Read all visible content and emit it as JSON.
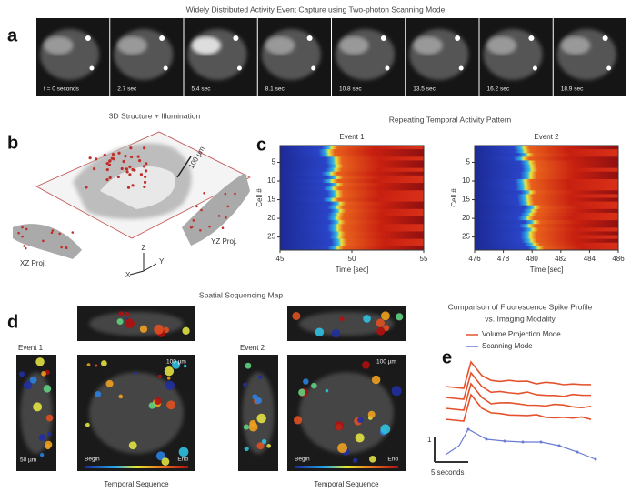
{
  "panel_a": {
    "label": "a",
    "title": "Widely Distributed Activity Event Capture using Two-photon Scanning Mode",
    "frames": [
      "t = 0 seconds",
      "2.7 sec",
      "5.4 sec",
      "8.1 sec",
      "10.8 sec",
      "13.5 sec",
      "16.2 sec",
      "18.9 sec"
    ]
  },
  "panel_b": {
    "label": "b",
    "title": "3D Structure + Illumination",
    "scale_bar": "100 µm",
    "xz_label": "XZ Proj.",
    "yz_label": "YZ Proj.",
    "axes": [
      "Z",
      "X",
      "Y"
    ]
  },
  "panel_c": {
    "label": "c",
    "title": "Repeating Temporal Activity Pattern",
    "y_label": "Cell #",
    "x_label": "Time [sec]",
    "events": [
      {
        "title": "Event 1",
        "yticks": [
          5,
          10,
          15,
          20,
          25
        ],
        "xticks": [
          45,
          50,
          55
        ]
      },
      {
        "title": "Event 2",
        "yticks": [
          5,
          10,
          15,
          20,
          25
        ],
        "xticks": [
          476,
          478,
          480,
          482,
          484,
          486
        ]
      }
    ]
  },
  "panel_d": {
    "label": "d",
    "title": "Spatial Sequencing Map",
    "events": [
      {
        "title": "Event 1",
        "scale_xy": "100 µm",
        "scale_z": "50 µm"
      },
      {
        "title": "Event 2",
        "scale_xy": "100 µm"
      }
    ],
    "colorbar": {
      "begin": "Begin",
      "end": "End",
      "label": "Temporal Sequence"
    }
  },
  "panel_e": {
    "label": "e",
    "title_lines": [
      "Comparison of Fluorescence Spike Profile",
      "vs. Imaging Modality"
    ],
    "legend": [
      {
        "name": "Volume Projection Mode",
        "color": "#e4532e"
      },
      {
        "name": "Scanning Mode",
        "color": "#6a7bd6"
      }
    ],
    "scale_y": "1",
    "scale_x": "5 seconds"
  }
}
